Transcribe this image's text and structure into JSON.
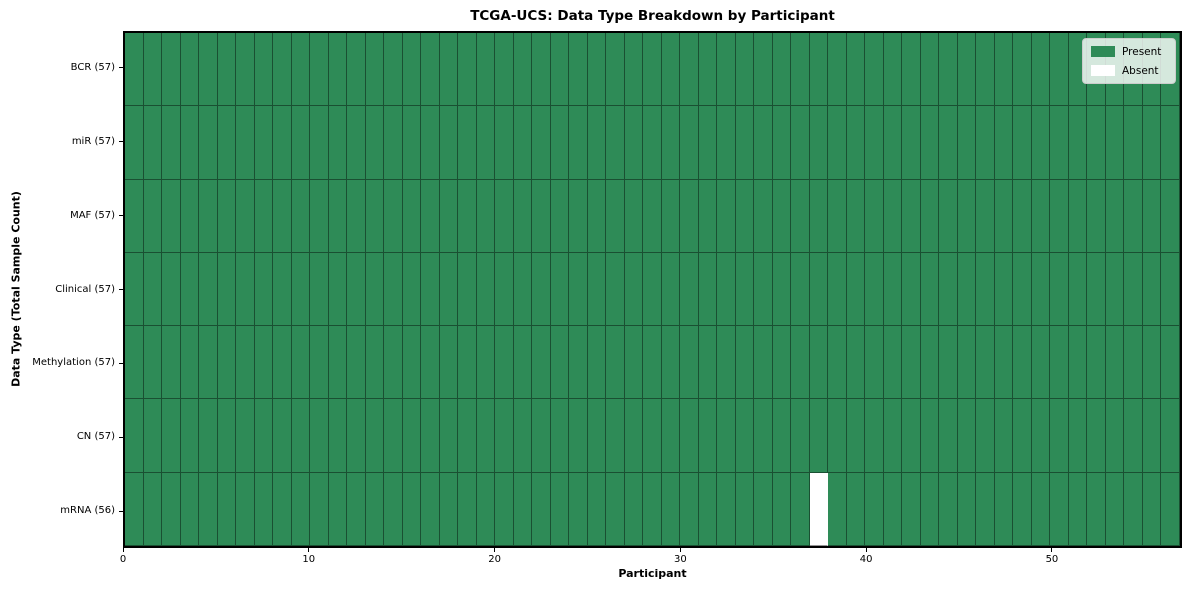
{
  "chart_data": {
    "type": "heatmap",
    "title": "TCGA-UCS: Data Type Breakdown by Participant",
    "xlabel": "Participant",
    "ylabel": "Data Type (Total Sample Count)",
    "x_ticks": [
      0,
      10,
      20,
      30,
      40,
      50
    ],
    "x_range": [
      0,
      57
    ],
    "n_participants": 57,
    "grid": true,
    "legend_position": "upper right",
    "rows": [
      {
        "label": "BCR (57)",
        "data_type": "BCR",
        "total": 57,
        "absent_participants": []
      },
      {
        "label": "miR (57)",
        "data_type": "miR",
        "total": 57,
        "absent_participants": []
      },
      {
        "label": "MAF (57)",
        "data_type": "MAF",
        "total": 57,
        "absent_participants": []
      },
      {
        "label": "Clinical (57)",
        "data_type": "Clinical",
        "total": 57,
        "absent_participants": []
      },
      {
        "label": "Methylation (57)",
        "data_type": "Methylation",
        "total": 57,
        "absent_participants": []
      },
      {
        "label": "CN (57)",
        "data_type": "CN",
        "total": 57,
        "absent_participants": []
      },
      {
        "label": "mRNA (56)",
        "data_type": "mRNA",
        "total": 56,
        "absent_participants": [
          37
        ]
      }
    ],
    "legend": [
      {
        "label": "Present",
        "color": "#2e8b57"
      },
      {
        "label": "Absent",
        "color": "#ffffff"
      }
    ],
    "colors": {
      "present": "#2e8b57",
      "absent": "#ffffff",
      "grid_line": "rgba(0,0,0,0.42)",
      "plot_border": "#000000"
    }
  }
}
